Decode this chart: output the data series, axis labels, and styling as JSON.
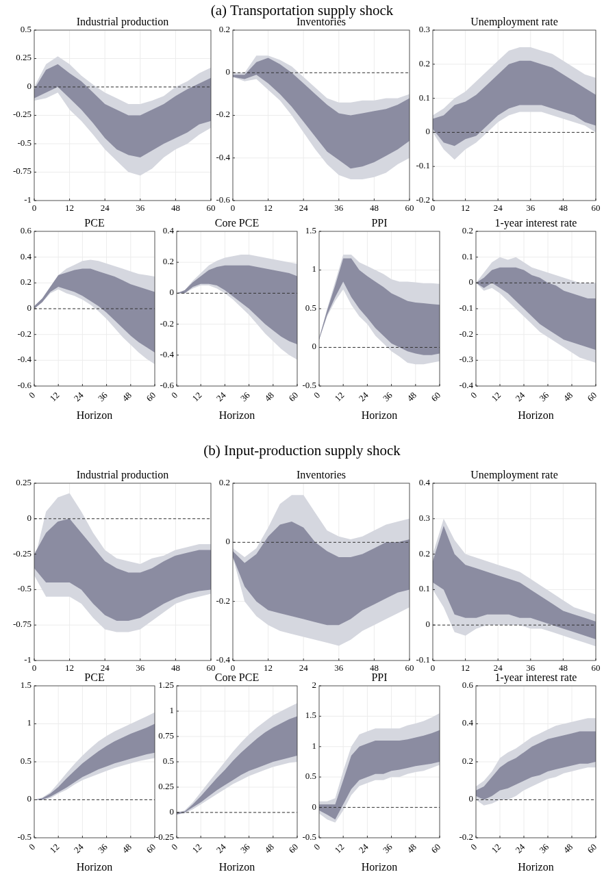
{
  "chart_data": [
    {
      "type": "line",
      "title": "Industrial production",
      "annotations": [
        "(a) Transportation supply shock"
      ],
      "x": [
        0,
        4,
        8,
        12,
        16,
        20,
        24,
        28,
        32,
        36,
        40,
        44,
        48,
        52,
        56,
        60
      ],
      "xlim": [
        0,
        60
      ],
      "xticks": [
        0,
        12,
        24,
        36,
        48,
        60
      ],
      "ylim": [
        -1,
        0.5
      ],
      "yticks": [
        -1,
        -0.75,
        -0.5,
        -0.25,
        0,
        0.25,
        0.5
      ],
      "grid": true,
      "ref_lines": [
        {
          "axis": "y",
          "value": 0,
          "line_style": "dashed"
        }
      ],
      "series": [
        {
          "color": "#d5d7df",
          "values": [
            null,
            null,
            null,
            null,
            null,
            null,
            null,
            null,
            null,
            null,
            null,
            null,
            null,
            null,
            null,
            null
          ],
          "lower": [
            -0.12,
            -0.1,
            -0.05,
            -0.2,
            -0.3,
            -0.42,
            -0.55,
            -0.65,
            -0.75,
            -0.78,
            -0.72,
            -0.62,
            -0.55,
            -0.5,
            -0.42,
            -0.36
          ],
          "upper": [
            0,
            0.2,
            0.27,
            0.2,
            0.1,
            0.02,
            -0.05,
            -0.1,
            -0.15,
            -0.15,
            -0.12,
            -0.08,
            0,
            0.05,
            0.12,
            0.17
          ]
        },
        {
          "color": "#8b8ca1",
          "values": [
            null,
            null,
            null,
            null,
            null,
            null,
            null,
            null,
            null,
            null,
            null,
            null,
            null,
            null,
            null,
            null
          ],
          "lower": [
            -0.1,
            -0.05,
            0,
            -0.1,
            -0.2,
            -0.32,
            -0.45,
            -0.55,
            -0.6,
            -0.62,
            -0.56,
            -0.5,
            -0.45,
            -0.4,
            -0.33,
            -0.3
          ],
          "upper": [
            -0.02,
            0.15,
            0.2,
            0.12,
            0.05,
            -0.05,
            -0.15,
            -0.2,
            -0.25,
            -0.25,
            -0.2,
            -0.15,
            -0.08,
            -0.02,
            0.03,
            0.08
          ]
        }
      ]
    },
    {
      "type": "line",
      "title": "Inventories",
      "x": [
        0,
        4,
        8,
        12,
        16,
        20,
        24,
        28,
        32,
        36,
        40,
        44,
        48,
        52,
        56,
        60
      ],
      "xlim": [
        0,
        60
      ],
      "xticks": [
        0,
        12,
        24,
        36,
        48,
        60
      ],
      "ylim": [
        -0.6,
        0.2
      ],
      "yticks": [
        -0.6,
        -0.4,
        -0.2,
        0,
        0.2
      ],
      "grid": true,
      "ref_lines": [
        {
          "axis": "y",
          "value": 0,
          "line_style": "dashed"
        }
      ],
      "series": [
        {
          "color": "#d5d7df",
          "values": [
            null,
            null,
            null,
            null,
            null,
            null,
            null,
            null,
            null,
            null,
            null,
            null,
            null,
            null,
            null,
            null
          ],
          "lower": [
            -0.02,
            -0.04,
            -0.03,
            -0.08,
            -0.13,
            -0.2,
            -0.28,
            -0.36,
            -0.43,
            -0.48,
            -0.5,
            -0.5,
            -0.49,
            -0.47,
            -0.43,
            -0.4
          ],
          "upper": [
            0,
            0,
            0.08,
            0.08,
            0.06,
            0.03,
            -0.02,
            -0.07,
            -0.12,
            -0.14,
            -0.14,
            -0.13,
            -0.13,
            -0.12,
            -0.12,
            -0.1
          ]
        },
        {
          "color": "#8b8ca1",
          "values": [
            null,
            null,
            null,
            null,
            null,
            null,
            null,
            null,
            null,
            null,
            null,
            null,
            null,
            null,
            null,
            null
          ],
          "lower": [
            -0.02,
            -0.03,
            -0.01,
            -0.05,
            -0.1,
            -0.16,
            -0.23,
            -0.3,
            -0.37,
            -0.41,
            -0.45,
            -0.44,
            -0.42,
            -0.39,
            -0.36,
            -0.32
          ],
          "upper": [
            -0.01,
            -0.01,
            0.05,
            0.07,
            0.04,
            0,
            -0.05,
            -0.1,
            -0.15,
            -0.19,
            -0.2,
            -0.19,
            -0.18,
            -0.17,
            -0.15,
            -0.12
          ]
        }
      ]
    },
    {
      "type": "line",
      "title": "Unemployment rate",
      "x": [
        0,
        4,
        8,
        12,
        16,
        20,
        24,
        28,
        32,
        36,
        40,
        44,
        48,
        52,
        56,
        60
      ],
      "xlim": [
        0,
        60
      ],
      "xticks": [
        0,
        12,
        24,
        36,
        48,
        60
      ],
      "ylim": [
        -0.2,
        0.3
      ],
      "yticks": [
        -0.2,
        -0.1,
        0,
        0.1,
        0.2,
        0.3
      ],
      "grid": true,
      "ref_lines": [
        {
          "axis": "y",
          "value": 0,
          "line_style": "dashed"
        }
      ],
      "series": [
        {
          "color": "#d5d7df",
          "values": [
            null,
            null,
            null,
            null,
            null,
            null,
            null,
            null,
            null,
            null,
            null,
            null,
            null,
            null,
            null,
            null
          ],
          "lower": [
            0,
            -0.05,
            -0.08,
            -0.05,
            -0.03,
            0,
            0.03,
            0.05,
            0.06,
            0.06,
            0.06,
            0.05,
            0.04,
            0.03,
            0.02,
            0
          ],
          "upper": [
            0.05,
            0.07,
            0.1,
            0.12,
            0.15,
            0.18,
            0.21,
            0.24,
            0.25,
            0.25,
            0.24,
            0.23,
            0.21,
            0.19,
            0.17,
            0.16
          ]
        },
        {
          "color": "#8b8ca1",
          "values": [
            null,
            null,
            null,
            null,
            null,
            null,
            null,
            null,
            null,
            null,
            null,
            null,
            null,
            null,
            null,
            null
          ],
          "lower": [
            0.01,
            -0.03,
            -0.04,
            -0.02,
            -0.01,
            0.02,
            0.05,
            0.07,
            0.08,
            0.08,
            0.08,
            0.07,
            0.06,
            0.05,
            0.03,
            0.02
          ],
          "upper": [
            0.04,
            0.05,
            0.08,
            0.09,
            0.11,
            0.14,
            0.17,
            0.2,
            0.21,
            0.21,
            0.2,
            0.19,
            0.17,
            0.15,
            0.13,
            0.11
          ]
        }
      ]
    },
    {
      "type": "line",
      "title": "PCE",
      "xlabel": "Horizon",
      "x": [
        0,
        4,
        8,
        12,
        16,
        20,
        24,
        28,
        32,
        36,
        40,
        44,
        48,
        52,
        56,
        60
      ],
      "xlim": [
        0,
        60
      ],
      "xticks": [
        0,
        12,
        24,
        36,
        48,
        60
      ],
      "ylim": [
        -0.6,
        0.6
      ],
      "yticks": [
        -0.6,
        -0.4,
        -0.2,
        0,
        0.2,
        0.4,
        0.6
      ],
      "grid": true,
      "ref_lines": [
        {
          "axis": "y",
          "value": 0,
          "line_style": "dashed"
        }
      ],
      "series": [
        {
          "color": "#d5d7df",
          "values": [
            null,
            null,
            null,
            null,
            null,
            null,
            null,
            null,
            null,
            null,
            null,
            null,
            null,
            null,
            null,
            null
          ],
          "lower": [
            0,
            0.05,
            0.12,
            0.15,
            0.12,
            0.1,
            0.07,
            0.03,
            -0.02,
            -0.08,
            -0.15,
            -0.22,
            -0.28,
            -0.34,
            -0.39,
            -0.43
          ],
          "upper": [
            0.02,
            0.08,
            0.17,
            0.26,
            0.31,
            0.34,
            0.37,
            0.38,
            0.37,
            0.35,
            0.33,
            0.31,
            0.29,
            0.27,
            0.26,
            0.25
          ]
        },
        {
          "color": "#8b8ca1",
          "values": [
            null,
            null,
            null,
            null,
            null,
            null,
            null,
            null,
            null,
            null,
            null,
            null,
            null,
            null,
            null,
            null
          ],
          "lower": [
            0,
            0.05,
            0.13,
            0.17,
            0.15,
            0.13,
            0.1,
            0.06,
            0.02,
            -0.03,
            -0.09,
            -0.15,
            -0.21,
            -0.26,
            -0.3,
            -0.34
          ],
          "upper": [
            0.02,
            0.08,
            0.17,
            0.26,
            0.28,
            0.3,
            0.31,
            0.31,
            0.29,
            0.27,
            0.25,
            0.22,
            0.19,
            0.17,
            0.15,
            0.13
          ]
        }
      ]
    },
    {
      "type": "line",
      "title": "Core PCE",
      "xlabel": "Horizon",
      "x": [
        0,
        4,
        8,
        12,
        16,
        20,
        24,
        28,
        32,
        36,
        40,
        44,
        48,
        52,
        56,
        60
      ],
      "xlim": [
        0,
        60
      ],
      "xticks": [
        0,
        12,
        24,
        36,
        48,
        60
      ],
      "ylim": [
        -0.6,
        0.4
      ],
      "yticks": [
        -0.6,
        -0.4,
        -0.2,
        0,
        0.2,
        0.4
      ],
      "grid": true,
      "ref_lines": [
        {
          "axis": "y",
          "value": 0,
          "line_style": "dashed"
        }
      ],
      "series": [
        {
          "color": "#d5d7df",
          "values": [
            null,
            null,
            null,
            null,
            null,
            null,
            null,
            null,
            null,
            null,
            null,
            null,
            null,
            null,
            null,
            null
          ],
          "lower": [
            0,
            0,
            0.03,
            0.05,
            0.05,
            0.03,
            0,
            -0.04,
            -0.09,
            -0.14,
            -0.2,
            -0.26,
            -0.31,
            -0.36,
            -0.4,
            -0.43
          ],
          "upper": [
            0,
            0.02,
            0.08,
            0.13,
            0.18,
            0.21,
            0.23,
            0.24,
            0.25,
            0.25,
            0.24,
            0.23,
            0.22,
            0.21,
            0.2,
            0.19
          ]
        },
        {
          "color": "#8b8ca1",
          "values": [
            null,
            null,
            null,
            null,
            null,
            null,
            null,
            null,
            null,
            null,
            null,
            null,
            null,
            null,
            null,
            null
          ],
          "lower": [
            0,
            0,
            0.04,
            0.06,
            0.06,
            0.05,
            0.02,
            -0.02,
            -0.06,
            -0.1,
            -0.15,
            -0.2,
            -0.24,
            -0.28,
            -0.31,
            -0.33
          ],
          "upper": [
            0,
            0.02,
            0.07,
            0.11,
            0.15,
            0.17,
            0.18,
            0.18,
            0.18,
            0.18,
            0.17,
            0.16,
            0.15,
            0.14,
            0.13,
            0.11
          ]
        }
      ]
    },
    {
      "type": "line",
      "title": "PPI",
      "xlabel": "Horizon",
      "x": [
        0,
        4,
        8,
        12,
        16,
        20,
        24,
        28,
        32,
        36,
        40,
        44,
        48,
        52,
        56,
        60
      ],
      "xlim": [
        0,
        60
      ],
      "xticks": [
        0,
        12,
        24,
        36,
        48,
        60
      ],
      "ylim": [
        -0.5,
        1.5
      ],
      "yticks": [
        -0.5,
        0,
        0.5,
        1,
        1.5
      ],
      "grid": true,
      "ref_lines": [
        {
          "axis": "y",
          "value": 0,
          "line_style": "dashed"
        }
      ],
      "series": [
        {
          "color": "#d5d7df",
          "values": [
            null,
            null,
            null,
            null,
            null,
            null,
            null,
            null,
            null,
            null,
            null,
            null,
            null,
            null,
            null,
            null
          ],
          "lower": [
            0.1,
            0.4,
            0.6,
            0.75,
            0.55,
            0.4,
            0.3,
            0.15,
            0.05,
            -0.05,
            -0.12,
            -0.2,
            -0.22,
            -0.22,
            -0.2,
            -0.18
          ],
          "upper": [
            0.12,
            0.5,
            0.85,
            1.2,
            1.2,
            1.1,
            1.05,
            1,
            0.95,
            0.88,
            0.85,
            0.85,
            0.84,
            0.83,
            0.83,
            0.82
          ]
        },
        {
          "color": "#8b8ca1",
          "values": [
            null,
            null,
            null,
            null,
            null,
            null,
            null,
            null,
            null,
            null,
            null,
            null,
            null,
            null,
            null,
            null
          ],
          "lower": [
            0.1,
            0.42,
            0.65,
            0.85,
            0.65,
            0.5,
            0.38,
            0.25,
            0.15,
            0.05,
            0,
            -0.05,
            -0.08,
            -0.1,
            -0.1,
            -0.08
          ],
          "upper": [
            0.12,
            0.48,
            0.8,
            1.15,
            1.15,
            1,
            0.92,
            0.85,
            0.78,
            0.7,
            0.65,
            0.6,
            0.58,
            0.57,
            0.56,
            0.55
          ]
        }
      ]
    },
    {
      "type": "line",
      "title": "1-year interest rate",
      "xlabel": "Horizon",
      "x": [
        0,
        4,
        8,
        12,
        16,
        20,
        24,
        28,
        32,
        36,
        40,
        44,
        48,
        52,
        56,
        60
      ],
      "xlim": [
        0,
        60
      ],
      "xticks": [
        0,
        12,
        24,
        36,
        48,
        60
      ],
      "ylim": [
        -0.4,
        0.2
      ],
      "yticks": [
        -0.4,
        -0.3,
        -0.2,
        -0.1,
        0,
        0.1,
        0.2
      ],
      "grid": true,
      "ref_lines": [
        {
          "axis": "y",
          "value": 0,
          "line_style": "dashed"
        }
      ],
      "series": [
        {
          "color": "#d5d7df",
          "values": [
            null,
            null,
            null,
            null,
            null,
            null,
            null,
            null,
            null,
            null,
            null,
            null,
            null,
            null,
            null,
            null
          ],
          "lower": [
            0,
            -0.03,
            -0.02,
            -0.04,
            -0.07,
            -0.1,
            -0.13,
            -0.16,
            -0.19,
            -0.21,
            -0.23,
            -0.25,
            -0.27,
            -0.29,
            -0.3,
            -0.31
          ],
          "upper": [
            0,
            0.04,
            0.08,
            0.1,
            0.09,
            0.1,
            0.08,
            0.06,
            0.05,
            0.04,
            0.03,
            0.02,
            0.01,
            0,
            0,
            0
          ]
        },
        {
          "color": "#8b8ca1",
          "values": [
            null,
            null,
            null,
            null,
            null,
            null,
            null,
            null,
            null,
            null,
            null,
            null,
            null,
            null,
            null,
            null
          ],
          "lower": [
            0,
            -0.02,
            0,
            -0.02,
            -0.04,
            -0.07,
            -0.1,
            -0.13,
            -0.16,
            -0.18,
            -0.2,
            -0.22,
            -0.23,
            -0.24,
            -0.25,
            -0.26
          ],
          "upper": [
            0,
            0.02,
            0.05,
            0.06,
            0.06,
            0.06,
            0.05,
            0.03,
            0.02,
            0,
            -0.01,
            -0.03,
            -0.04,
            -0.05,
            -0.06,
            -0.06
          ]
        }
      ]
    },
    {
      "type": "line",
      "title": "Industrial production",
      "annotations": [
        "(b) Input-production supply shock"
      ],
      "x": [
        0,
        4,
        8,
        12,
        16,
        20,
        24,
        28,
        32,
        36,
        40,
        44,
        48,
        52,
        56,
        60
      ],
      "xlim": [
        0,
        60
      ],
      "xticks": [
        0,
        12,
        24,
        36,
        48,
        60
      ],
      "ylim": [
        -1,
        0.25
      ],
      "yticks": [
        -1,
        -0.75,
        -0.5,
        -0.25,
        0,
        0.25
      ],
      "grid": true,
      "ref_lines": [
        {
          "axis": "y",
          "value": 0,
          "line_style": "dashed"
        }
      ],
      "series": [
        {
          "color": "#d5d7df",
          "values": [
            null,
            null,
            null,
            null,
            null,
            null,
            null,
            null,
            null,
            null,
            null,
            null,
            null,
            null,
            null,
            null
          ],
          "lower": [
            -0.4,
            -0.55,
            -0.55,
            -0.55,
            -0.6,
            -0.7,
            -0.78,
            -0.8,
            -0.8,
            -0.78,
            -0.72,
            -0.66,
            -0.6,
            -0.57,
            -0.55,
            -0.53
          ],
          "upper": [
            -0.3,
            0.05,
            0.15,
            0.18,
            0.05,
            -0.1,
            -0.22,
            -0.28,
            -0.3,
            -0.32,
            -0.28,
            -0.26,
            -0.22,
            -0.2,
            -0.18,
            -0.18
          ]
        },
        {
          "color": "#8b8ca1",
          "values": [
            null,
            null,
            null,
            null,
            null,
            null,
            null,
            null,
            null,
            null,
            null,
            null,
            null,
            null,
            null,
            null
          ],
          "lower": [
            -0.35,
            -0.45,
            -0.45,
            -0.45,
            -0.5,
            -0.6,
            -0.68,
            -0.72,
            -0.72,
            -0.7,
            -0.65,
            -0.6,
            -0.56,
            -0.53,
            -0.51,
            -0.5
          ],
          "upper": [
            -0.25,
            -0.1,
            -0.02,
            0,
            -0.1,
            -0.2,
            -0.3,
            -0.35,
            -0.38,
            -0.38,
            -0.35,
            -0.3,
            -0.26,
            -0.24,
            -0.22,
            -0.22
          ]
        }
      ]
    },
    {
      "type": "line",
      "title": "Inventories",
      "x": [
        0,
        4,
        8,
        12,
        16,
        20,
        24,
        28,
        32,
        36,
        40,
        44,
        48,
        52,
        56,
        60
      ],
      "xlim": [
        0,
        60
      ],
      "xticks": [
        0,
        12,
        24,
        36,
        48,
        60
      ],
      "ylim": [
        -0.4,
        0.2
      ],
      "yticks": [
        -0.4,
        -0.2,
        0,
        0.2
      ],
      "grid": true,
      "ref_lines": [
        {
          "axis": "y",
          "value": 0,
          "line_style": "dashed"
        }
      ],
      "series": [
        {
          "color": "#d5d7df",
          "values": [
            null,
            null,
            null,
            null,
            null,
            null,
            null,
            null,
            null,
            null,
            null,
            null,
            null,
            null,
            null,
            null
          ],
          "lower": [
            -0.05,
            -0.2,
            -0.25,
            -0.28,
            -0.3,
            -0.31,
            -0.32,
            -0.33,
            -0.34,
            -0.35,
            -0.33,
            -0.3,
            -0.28,
            -0.26,
            -0.24,
            -0.22
          ],
          "upper": [
            -0.02,
            -0.05,
            -0.02,
            0.05,
            0.13,
            0.16,
            0.16,
            0.1,
            0.04,
            0.02,
            0.01,
            0.02,
            0.04,
            0.06,
            0.07,
            0.08
          ]
        },
        {
          "color": "#8b8ca1",
          "values": [
            null,
            null,
            null,
            null,
            null,
            null,
            null,
            null,
            null,
            null,
            null,
            null,
            null,
            null,
            null,
            null
          ],
          "lower": [
            -0.05,
            -0.15,
            -0.2,
            -0.23,
            -0.24,
            -0.25,
            -0.26,
            -0.27,
            -0.28,
            -0.28,
            -0.26,
            -0.23,
            -0.21,
            -0.19,
            -0.17,
            -0.16
          ],
          "upper": [
            -0.03,
            -0.07,
            -0.04,
            0.02,
            0.06,
            0.07,
            0.05,
            0,
            -0.03,
            -0.05,
            -0.05,
            -0.04,
            -0.02,
            0,
            0,
            0.01
          ]
        }
      ]
    },
    {
      "type": "line",
      "title": "Unemployment rate",
      "x": [
        0,
        4,
        8,
        12,
        16,
        20,
        24,
        28,
        32,
        36,
        40,
        44,
        48,
        52,
        56,
        60
      ],
      "xlim": [
        0,
        60
      ],
      "xticks": [
        0,
        12,
        24,
        36,
        48,
        60
      ],
      "ylim": [
        -0.1,
        0.4
      ],
      "yticks": [
        -0.1,
        0,
        0.1,
        0.2,
        0.3,
        0.4
      ],
      "grid": true,
      "ref_lines": [
        {
          "axis": "y",
          "value": 0,
          "line_style": "dashed"
        }
      ],
      "series": [
        {
          "color": "#d5d7df",
          "values": [
            null,
            null,
            null,
            null,
            null,
            null,
            null,
            null,
            null,
            null,
            null,
            null,
            null,
            null,
            null,
            null
          ],
          "lower": [
            0.1,
            0.05,
            -0.02,
            -0.03,
            -0.01,
            0,
            0,
            0,
            0,
            -0.01,
            -0.01,
            -0.02,
            -0.03,
            -0.04,
            -0.05,
            -0.06
          ],
          "upper": [
            0.2,
            0.3,
            0.24,
            0.2,
            0.19,
            0.18,
            0.17,
            0.16,
            0.15,
            0.13,
            0.11,
            0.09,
            0.07,
            0.05,
            0.04,
            0.03
          ]
        },
        {
          "color": "#8b8ca1",
          "values": [
            null,
            null,
            null,
            null,
            null,
            null,
            null,
            null,
            null,
            null,
            null,
            null,
            null,
            null,
            null,
            null
          ],
          "lower": [
            0.12,
            0.1,
            0.03,
            0.02,
            0.02,
            0.03,
            0.03,
            0.03,
            0.02,
            0.02,
            0.01,
            0,
            -0.01,
            -0.02,
            -0.03,
            -0.04
          ],
          "upper": [
            0.18,
            0.28,
            0.2,
            0.17,
            0.16,
            0.15,
            0.14,
            0.13,
            0.12,
            0.1,
            0.08,
            0.06,
            0.04,
            0.03,
            0.02,
            0.01
          ]
        }
      ]
    },
    {
      "type": "line",
      "title": "PCE",
      "xlabel": "Horizon",
      "x": [
        0,
        4,
        8,
        12,
        16,
        20,
        24,
        28,
        32,
        36,
        40,
        44,
        48,
        52,
        56,
        60
      ],
      "xlim": [
        0,
        60
      ],
      "xticks": [
        0,
        12,
        24,
        36,
        48,
        60
      ],
      "ylim": [
        -0.5,
        1.5
      ],
      "yticks": [
        -0.5,
        0,
        0.5,
        1,
        1.5
      ],
      "grid": true,
      "ref_lines": [
        {
          "axis": "y",
          "value": 0,
          "line_style": "dashed"
        }
      ],
      "series": [
        {
          "color": "#d5d7df",
          "values": [
            null,
            null,
            null,
            null,
            null,
            null,
            null,
            null,
            null,
            null,
            null,
            null,
            null,
            null,
            null,
            null
          ],
          "lower": [
            0,
            0,
            0.02,
            0.08,
            0.13,
            0.2,
            0.26,
            0.3,
            0.34,
            0.38,
            0.42,
            0.45,
            0.48,
            0.51,
            0.53,
            0.55
          ],
          "upper": [
            0,
            0.03,
            0.1,
            0.22,
            0.35,
            0.47,
            0.58,
            0.68,
            0.77,
            0.84,
            0.9,
            0.95,
            1,
            1.05,
            1.1,
            1.15
          ]
        },
        {
          "color": "#8b8ca1",
          "values": [
            null,
            null,
            null,
            null,
            null,
            null,
            null,
            null,
            null,
            null,
            null,
            null,
            null,
            null,
            null,
            null
          ],
          "lower": [
            0,
            0,
            0.04,
            0.1,
            0.16,
            0.23,
            0.3,
            0.35,
            0.4,
            0.44,
            0.48,
            0.51,
            0.54,
            0.57,
            0.6,
            0.62
          ],
          "upper": [
            0,
            0.02,
            0.08,
            0.17,
            0.28,
            0.38,
            0.48,
            0.56,
            0.64,
            0.71,
            0.77,
            0.82,
            0.87,
            0.91,
            0.95,
            1
          ]
        }
      ]
    },
    {
      "type": "line",
      "title": "Core PCE",
      "xlabel": "Horizon",
      "x": [
        0,
        4,
        8,
        12,
        16,
        20,
        24,
        28,
        32,
        36,
        40,
        44,
        48,
        52,
        56,
        60
      ],
      "xlim": [
        0,
        60
      ],
      "xticks": [
        0,
        12,
        24,
        36,
        48,
        60
      ],
      "ylim": [
        -0.25,
        1.25
      ],
      "yticks": [
        -0.25,
        0,
        0.25,
        0.5,
        0.75,
        1,
        1.25
      ],
      "grid": true,
      "ref_lines": [
        {
          "axis": "y",
          "value": 0,
          "line_style": "dashed"
        }
      ],
      "series": [
        {
          "color": "#d5d7df",
          "values": [
            null,
            null,
            null,
            null,
            null,
            null,
            null,
            null,
            null,
            null,
            null,
            null,
            null,
            null,
            null,
            null
          ],
          "lower": [
            -0.02,
            -0.01,
            0.03,
            0.08,
            0.13,
            0.18,
            0.23,
            0.28,
            0.32,
            0.36,
            0.39,
            0.42,
            0.45,
            0.47,
            0.49,
            0.5
          ],
          "upper": [
            0,
            0.02,
            0.1,
            0.2,
            0.3,
            0.4,
            0.5,
            0.6,
            0.69,
            0.77,
            0.84,
            0.9,
            0.96,
            1,
            1.04,
            1.08
          ]
        },
        {
          "color": "#8b8ca1",
          "values": [
            null,
            null,
            null,
            null,
            null,
            null,
            null,
            null,
            null,
            null,
            null,
            null,
            null,
            null,
            null,
            null
          ],
          "lower": [
            -0.02,
            0,
            0.05,
            0.1,
            0.16,
            0.22,
            0.27,
            0.32,
            0.37,
            0.41,
            0.44,
            0.47,
            0.5,
            0.52,
            0.54,
            0.56
          ],
          "upper": [
            0,
            0.01,
            0.08,
            0.16,
            0.25,
            0.34,
            0.42,
            0.51,
            0.59,
            0.66,
            0.73,
            0.79,
            0.84,
            0.88,
            0.92,
            0.95
          ]
        }
      ]
    },
    {
      "type": "line",
      "title": "PPI",
      "xlabel": "Horizon",
      "x": [
        0,
        4,
        8,
        12,
        16,
        20,
        24,
        28,
        32,
        36,
        40,
        44,
        48,
        52,
        56,
        60
      ],
      "xlim": [
        0,
        60
      ],
      "xticks": [
        0,
        12,
        24,
        36,
        48,
        60
      ],
      "ylim": [
        -0.5,
        2
      ],
      "yticks": [
        -0.5,
        0,
        0.5,
        1,
        1.5,
        2
      ],
      "grid": true,
      "ref_lines": [
        {
          "axis": "y",
          "value": 0,
          "line_style": "dashed"
        }
      ],
      "series": [
        {
          "color": "#d5d7df",
          "values": [
            null,
            null,
            null,
            null,
            null,
            null,
            null,
            null,
            null,
            null,
            null,
            null,
            null,
            null,
            null,
            null
          ],
          "lower": [
            -0.1,
            -0.2,
            -0.25,
            -0.05,
            0.2,
            0.35,
            0.4,
            0.45,
            0.45,
            0.5,
            0.5,
            0.55,
            0.58,
            0.6,
            0.65,
            0.7
          ],
          "upper": [
            0.1,
            0.1,
            0.15,
            0.6,
            1,
            1.2,
            1.25,
            1.3,
            1.3,
            1.3,
            1.3,
            1.35,
            1.38,
            1.42,
            1.48,
            1.55
          ]
        },
        {
          "color": "#8b8ca1",
          "values": [
            null,
            null,
            null,
            null,
            null,
            null,
            null,
            null,
            null,
            null,
            null,
            null,
            null,
            null,
            null,
            null
          ],
          "lower": [
            -0.05,
            -0.12,
            -0.2,
            0.05,
            0.3,
            0.45,
            0.5,
            0.55,
            0.55,
            0.6,
            0.62,
            0.65,
            0.68,
            0.7,
            0.72,
            0.75
          ],
          "upper": [
            0.05,
            0.05,
            0.05,
            0.45,
            0.85,
            1,
            1.05,
            1.1,
            1.1,
            1.1,
            1.1,
            1.12,
            1.15,
            1.18,
            1.22,
            1.27
          ]
        }
      ]
    },
    {
      "type": "line",
      "title": "1-year interest rate",
      "xlabel": "Horizon",
      "x": [
        0,
        4,
        8,
        12,
        16,
        20,
        24,
        28,
        32,
        36,
        40,
        44,
        48,
        52,
        56,
        60
      ],
      "xlim": [
        0,
        60
      ],
      "xticks": [
        0,
        12,
        24,
        36,
        48,
        60
      ],
      "ylim": [
        -0.2,
        0.6
      ],
      "yticks": [
        -0.2,
        0,
        0.2,
        0.4,
        0.6
      ],
      "grid": true,
      "ref_lines": [
        {
          "axis": "y",
          "value": 0,
          "line_style": "dashed"
        }
      ],
      "series": [
        {
          "color": "#d5d7df",
          "values": [
            null,
            null,
            null,
            null,
            null,
            null,
            null,
            null,
            null,
            null,
            null,
            null,
            null,
            null,
            null,
            null
          ],
          "lower": [
            0,
            -0.03,
            -0.02,
            0,
            0,
            0.02,
            0.05,
            0.07,
            0.09,
            0.11,
            0.12,
            0.14,
            0.15,
            0.16,
            0.17,
            0.17
          ],
          "upper": [
            0.07,
            0.1,
            0.15,
            0.22,
            0.25,
            0.27,
            0.3,
            0.33,
            0.35,
            0.37,
            0.39,
            0.4,
            0.41,
            0.42,
            0.43,
            0.43
          ]
        },
        {
          "color": "#8b8ca1",
          "values": [
            null,
            null,
            null,
            null,
            null,
            null,
            null,
            null,
            null,
            null,
            null,
            null,
            null,
            null,
            null,
            null
          ],
          "lower": [
            0.02,
            0,
            0.02,
            0.05,
            0.06,
            0.08,
            0.1,
            0.12,
            0.13,
            0.15,
            0.16,
            0.17,
            0.18,
            0.19,
            0.19,
            0.2
          ],
          "upper": [
            0.05,
            0.07,
            0.12,
            0.17,
            0.2,
            0.22,
            0.25,
            0.28,
            0.3,
            0.32,
            0.33,
            0.34,
            0.35,
            0.36,
            0.36,
            0.36
          ]
        }
      ]
    }
  ]
}
